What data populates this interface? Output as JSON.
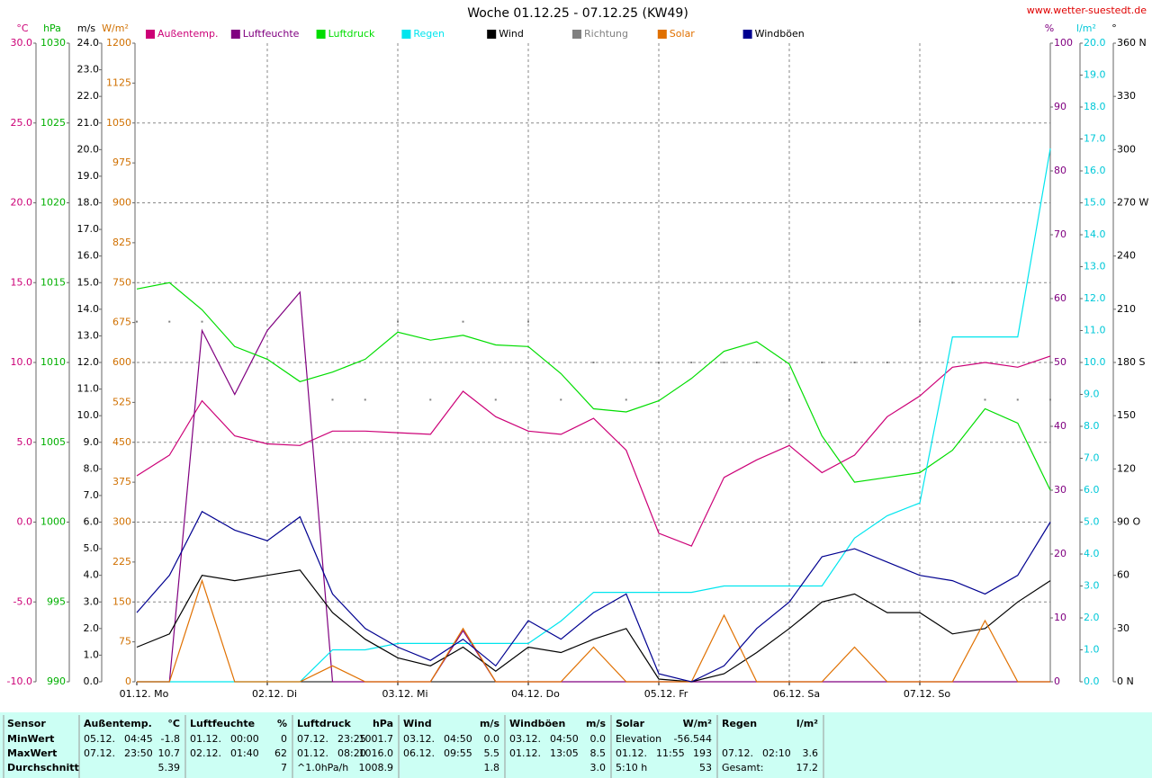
{
  "chart_data": {
    "type": "line",
    "title": "Woche 01.12.25 - 07.12.25 (KW49)",
    "source": "www.wetter-suestedt.de",
    "xlim": [
      0,
      168
    ],
    "xticks": [
      {
        "value": 0,
        "label": "01.12. Mo"
      },
      {
        "value": 24,
        "label": "02.12. Di"
      },
      {
        "value": 48,
        "label": "03.12. Mi"
      },
      {
        "value": 72,
        "label": "04.12. Do"
      },
      {
        "value": 96,
        "label": "05.12. Fr"
      },
      {
        "value": 120,
        "label": "06.12. Sa"
      },
      {
        "value": 144,
        "label": "07.12. So"
      }
    ],
    "x": [
      0,
      6,
      12,
      18,
      24,
      30,
      36,
      42,
      48,
      54,
      60,
      66,
      72,
      78,
      84,
      90,
      96,
      102,
      108,
      114,
      120,
      126,
      132,
      138,
      144,
      150,
      156,
      162,
      168
    ],
    "grid": true,
    "axes": [
      {
        "label": "°C",
        "color": "#cc0077",
        "lim": [
          -10,
          30
        ],
        "ticks": [
          {
            "value": -10,
            "label": "-10.0"
          },
          {
            "value": -5,
            "label": "-5.0"
          },
          {
            "value": 0,
            "label": "0.0"
          },
          {
            "value": 5,
            "label": "5.0"
          },
          {
            "value": 10,
            "label": "10.0"
          },
          {
            "value": 15,
            "label": "15.0"
          },
          {
            "value": 20,
            "label": "20.0"
          },
          {
            "value": 25,
            "label": "25.0"
          },
          {
            "value": 30,
            "label": "30.0"
          }
        ]
      },
      {
        "label": "hPa",
        "color": "#00b000",
        "lim": [
          990,
          1030
        ],
        "ticks": [
          990,
          995,
          1000,
          1005,
          1010,
          1015,
          1020,
          1025,
          1030
        ]
      },
      {
        "label": "m/s",
        "color": "#000000",
        "lim": [
          0,
          24
        ],
        "ticks": [
          {
            "value": 0,
            "label": "0.0"
          },
          {
            "value": 1,
            "label": "1.0"
          },
          {
            "value": 2,
            "label": "2.0"
          },
          {
            "value": 3,
            "label": "3.0"
          },
          {
            "value": 4,
            "label": "4.0"
          },
          {
            "value": 5,
            "label": "5.0"
          },
          {
            "value": 6,
            "label": "6.0"
          },
          {
            "value": 7,
            "label": "7.0"
          },
          {
            "value": 8,
            "label": "8.0"
          },
          {
            "value": 9,
            "label": "9.0"
          },
          {
            "value": 10,
            "label": "10.0"
          },
          {
            "value": 11,
            "label": "11.0"
          },
          {
            "value": 12,
            "label": "12.0"
          },
          {
            "value": 13,
            "label": "13.0"
          },
          {
            "value": 14,
            "label": "14.0"
          },
          {
            "value": 15,
            "label": "15.0"
          },
          {
            "value": 16,
            "label": "16.0"
          },
          {
            "value": 17,
            "label": "17.0"
          },
          {
            "value": 18,
            "label": "18.0"
          },
          {
            "value": 19,
            "label": "19.0"
          },
          {
            "value": 20,
            "label": "20.0"
          },
          {
            "value": 21,
            "label": "21.0"
          },
          {
            "value": 22,
            "label": "22.0"
          },
          {
            "value": 23,
            "label": "23.0"
          },
          {
            "value": 24,
            "label": "24.0"
          }
        ]
      },
      {
        "label": "W/m²",
        "color": "#d07000",
        "lim": [
          0,
          1200
        ],
        "ticks": [
          0,
          75,
          150,
          225,
          300,
          375,
          450,
          525,
          600,
          675,
          750,
          825,
          900,
          975,
          1050,
          1125,
          1200
        ]
      },
      {
        "label": "%",
        "color": "#800080",
        "lim": [
          0,
          100
        ],
        "ticks": [
          0,
          10,
          20,
          30,
          40,
          50,
          60,
          70,
          80,
          90,
          100
        ]
      },
      {
        "label": "l/m²",
        "color": "#00c8d8",
        "lim": [
          0,
          20
        ],
        "ticks": [
          {
            "value": 0,
            "label": "0.0"
          },
          {
            "value": 1,
            "label": "1.0"
          },
          {
            "value": 2,
            "label": "2.0"
          },
          {
            "value": 3,
            "label": "3.0"
          },
          {
            "value": 4,
            "label": "4.0"
          },
          {
            "value": 5,
            "label": "5.0"
          },
          {
            "value": 6,
            "label": "6.0"
          },
          {
            "value": 7,
            "label": "7.0"
          },
          {
            "value": 8,
            "label": "8.0"
          },
          {
            "value": 9,
            "label": "9.0"
          },
          {
            "value": 10,
            "label": "10.0"
          },
          {
            "value": 11,
            "label": "11.0"
          },
          {
            "value": 12,
            "label": "12.0"
          },
          {
            "value": 13,
            "label": "13.0"
          },
          {
            "value": 14,
            "label": "14.0"
          },
          {
            "value": 15,
            "label": "15.0"
          },
          {
            "value": 16,
            "label": "16.0"
          },
          {
            "value": 17,
            "label": "17.0"
          },
          {
            "value": 18,
            "label": "18.0"
          },
          {
            "value": 19,
            "label": "19.0"
          },
          {
            "value": 20,
            "label": "20.0"
          }
        ]
      },
      {
        "label": "°",
        "color": "#808080",
        "lim": [
          0,
          360
        ],
        "ticks": [
          {
            "value": 0,
            "label": "0 N"
          },
          30,
          60,
          {
            "value": 90,
            "label": "90 O"
          },
          120,
          150,
          {
            "value": 180,
            "label": "180 S"
          },
          210,
          240,
          {
            "value": 270,
            "label": "270 W"
          },
          300,
          330,
          {
            "value": 360,
            "label": "360 N"
          }
        ]
      }
    ],
    "series": [
      {
        "name": "Außentemp.",
        "color": "#cc0077",
        "axis": 0,
        "style": "line",
        "values": [
          2.9,
          4.2,
          7.6,
          5.4,
          4.9,
          4.8,
          5.7,
          5.7,
          5.6,
          5.5,
          8.2,
          6.6,
          5.7,
          5.5,
          6.5,
          4.5,
          -0.7,
          -1.5,
          2.8,
          3.9,
          4.8,
          3.1,
          4.2,
          6.6,
          7.9,
          9.7,
          10.0,
          9.7,
          10.4
        ]
      },
      {
        "name": "Luftfeuchte",
        "color": "#800080",
        "axis": 4,
        "style": "line",
        "values": [
          0,
          0,
          55,
          45,
          55,
          61,
          0,
          0,
          0,
          0,
          8,
          0,
          0,
          0,
          0,
          0,
          0,
          0,
          0,
          0,
          0,
          0,
          0,
          0,
          0,
          0,
          0,
          0,
          0
        ]
      },
      {
        "name": "Luftdruck",
        "color": "#00dd00",
        "axis": 1,
        "style": "line",
        "values": [
          1014.6,
          1015.0,
          1013.3,
          1011.0,
          1010.2,
          1008.8,
          1009.4,
          1010.2,
          1011.9,
          1011.4,
          1011.7,
          1011.1,
          1011.0,
          1009.3,
          1007.1,
          1006.9,
          1007.6,
          1009.0,
          1010.7,
          1011.3,
          1009.9,
          1005.4,
          1002.5,
          1002.8,
          1003.1,
          1004.5,
          1007.1,
          1006.2,
          1002.0
        ]
      },
      {
        "name": "Regen",
        "color": "#00e5ee",
        "axis": 5,
        "style": "line",
        "values": [
          0,
          0,
          0,
          0,
          0,
          0,
          1.0,
          1.0,
          1.2,
          1.2,
          1.2,
          1.2,
          1.2,
          1.9,
          2.8,
          2.8,
          2.8,
          2.8,
          3.0,
          3.0,
          3.0,
          3.0,
          4.5,
          5.2,
          5.6,
          10.8,
          10.8,
          10.8,
          16.7
        ]
      },
      {
        "name": "Wind",
        "color": "#000000",
        "axis": 2,
        "style": "line",
        "values": [
          1.3,
          1.8,
          4.0,
          3.8,
          4.0,
          4.2,
          2.6,
          1.6,
          0.9,
          0.6,
          1.3,
          0.4,
          1.3,
          1.1,
          1.6,
          2.0,
          0.1,
          0,
          0.3,
          1.1,
          2.0,
          3.0,
          3.3,
          2.6,
          2.6,
          1.8,
          2.0,
          3.0,
          3.8
        ]
      },
      {
        "name": "Richtung",
        "color": "#808080",
        "axis": 6,
        "style": "dots",
        "values": [
          203,
          203,
          203,
          null,
          null,
          null,
          159,
          159,
          203,
          159,
          203,
          159,
          203,
          159,
          180,
          159,
          180,
          180,
          180,
          180,
          159,
          180,
          180,
          180,
          203,
          225,
          159,
          159,
          159
        ]
      },
      {
        "name": "Solar",
        "color": "#e07000",
        "axis": 3,
        "style": "line",
        "values": [
          0,
          0,
          190,
          0,
          0,
          0,
          30,
          0,
          0,
          0,
          100,
          0,
          0,
          0,
          65,
          0,
          0,
          0,
          125,
          0,
          0,
          0,
          65,
          0,
          0,
          0,
          115,
          0,
          0
        ]
      },
      {
        "name": "Windböen",
        "color": "#000090",
        "axis": 2,
        "style": "line",
        "values": [
          2.6,
          4.0,
          6.4,
          5.7,
          5.3,
          6.2,
          3.3,
          2.0,
          1.3,
          0.8,
          1.6,
          0.6,
          2.3,
          1.6,
          2.6,
          3.3,
          0.3,
          0,
          0.6,
          2.0,
          3.0,
          4.7,
          5.0,
          4.5,
          4.0,
          3.8,
          3.3,
          4.0,
          6.0
        ]
      }
    ]
  },
  "table": {
    "header_label": "Sensor",
    "row_labels": [
      "MinWert",
      "MaxWert",
      "Durchschnitt"
    ],
    "groups": [
      {
        "title": "Außentemp.",
        "unit": "°C",
        "rows": [
          [
            "05.12.",
            "04:45",
            "-1.8"
          ],
          [
            "07.12.",
            "23:50",
            "10.7"
          ],
          [
            "5.39"
          ]
        ]
      },
      {
        "title": "Luftfeuchte",
        "unit": "%",
        "rows": [
          [
            "01.12.",
            "00:00",
            "0"
          ],
          [
            "02.12.",
            "01:40",
            "62"
          ],
          [
            "7"
          ]
        ]
      },
      {
        "title": "Luftdruck",
        "unit": "hPa",
        "rows": [
          [
            "07.12.",
            "23:25",
            "1001.7"
          ],
          [
            "01.12.",
            "08:20",
            "1016.0"
          ],
          [
            "^1.0hPa/h",
            "1008.9"
          ]
        ]
      },
      {
        "title": "Wind",
        "unit": "m/s",
        "rows": [
          [
            "03.12.",
            "04:50",
            "0.0"
          ],
          [
            "06.12.",
            "09:55",
            "5.5"
          ],
          [
            "1.8"
          ]
        ]
      },
      {
        "title": "Windböen",
        "unit": "m/s",
        "rows": [
          [
            "03.12.",
            "04:50",
            "0.0"
          ],
          [
            "01.12.",
            "13:05",
            "8.5"
          ],
          [
            "3.0"
          ]
        ]
      },
      {
        "title": "Solar",
        "unit": "W/m²",
        "rows": [
          [
            "Elevation",
            "-56.544"
          ],
          [
            "01.12.",
            "11:55",
            "193"
          ],
          [
            "5:10 h",
            "53"
          ]
        ]
      },
      {
        "title": "Regen",
        "unit": "l/m²",
        "rows": [
          [],
          [
            "07.12.",
            "02:10",
            "3.6"
          ],
          [
            "Gesamt:",
            "17.2"
          ]
        ]
      }
    ]
  }
}
